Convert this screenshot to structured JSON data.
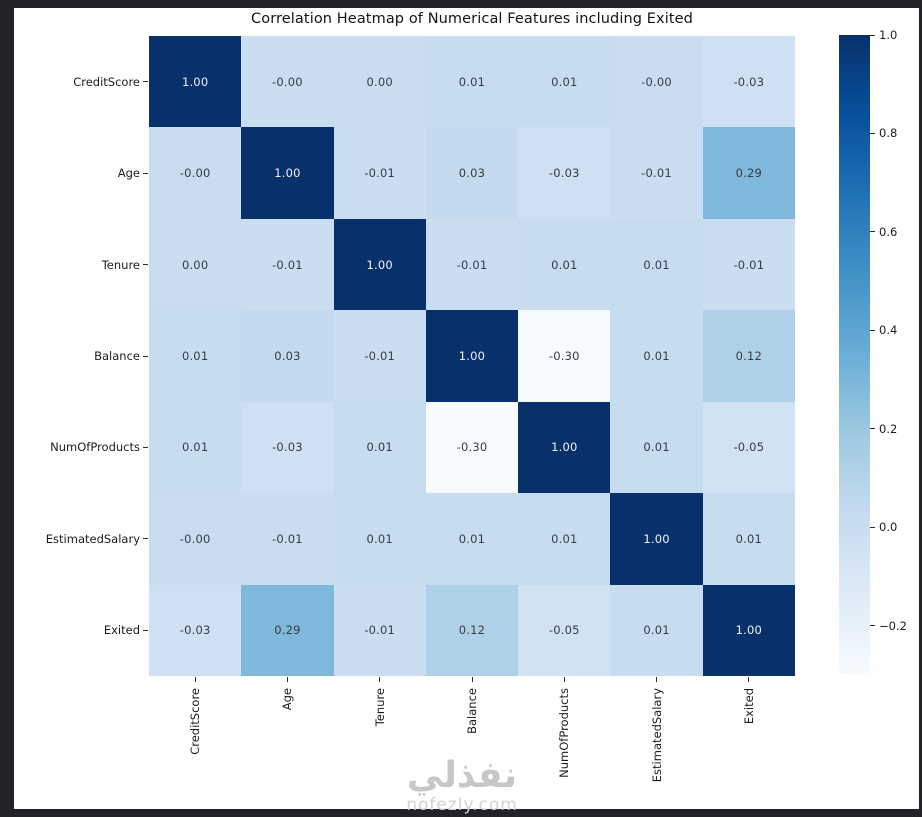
{
  "title": "Correlation Heatmap of Numerical Features including Exited",
  "frame": {
    "border_color": "#222326",
    "figure_background": "#ffffff"
  },
  "chart_data": {
    "type": "heatmap",
    "title": "Correlation Heatmap of Numerical Features including Exited",
    "x_labels": [
      "CreditScore",
      "Age",
      "Tenure",
      "Balance",
      "NumOfProducts",
      "EstimatedSalary",
      "Exited"
    ],
    "y_labels": [
      "CreditScore",
      "Age",
      "Tenure",
      "Balance",
      "NumOfProducts",
      "EstimatedSalary",
      "Exited"
    ],
    "values": [
      [
        "1.00",
        "-0.00",
        "0.00",
        "0.01",
        "0.01",
        "-0.00",
        "-0.03"
      ],
      [
        "-0.00",
        "1.00",
        "-0.01",
        "0.03",
        "-0.03",
        "-0.01",
        "0.29"
      ],
      [
        "0.00",
        "-0.01",
        "1.00",
        "-0.01",
        "0.01",
        "0.01",
        "-0.01"
      ],
      [
        "0.01",
        "0.03",
        "-0.01",
        "1.00",
        "-0.30",
        "0.01",
        "0.12"
      ],
      [
        "0.01",
        "-0.03",
        "0.01",
        "-0.30",
        "1.00",
        "0.01",
        "-0.05"
      ],
      [
        "-0.00",
        "-0.01",
        "0.01",
        "0.01",
        "0.01",
        "1.00",
        "0.01"
      ],
      [
        "-0.03",
        "0.29",
        "-0.01",
        "0.12",
        "-0.05",
        "0.01",
        "1.00"
      ]
    ],
    "vmin": -0.3,
    "vmax": 1.0,
    "colormap": "Blues",
    "colormap_anchors": [
      "#f7fbff",
      "#deebf7",
      "#c6dbef",
      "#9ecae1",
      "#6baed6",
      "#4292c6",
      "#2171b5",
      "#08519c",
      "#08306b"
    ],
    "annotation_dark_color": "#343c43",
    "annotation_light_color": "#eef3fc",
    "grid": false,
    "colorbar": {
      "position": "right",
      "ticks": [
        {
          "label": "1.0",
          "value": 1.0
        },
        {
          "label": "0.8",
          "value": 0.8
        },
        {
          "label": "0.6",
          "value": 0.6
        },
        {
          "label": "0.4",
          "value": 0.4
        },
        {
          "label": "0.2",
          "value": 0.2
        },
        {
          "label": "0.0",
          "value": 0.0
        },
        {
          "label": "−0.2",
          "value": -0.2
        }
      ]
    }
  },
  "watermark": {
    "arabic": "نفذلي",
    "domain": "nofezly.com"
  }
}
